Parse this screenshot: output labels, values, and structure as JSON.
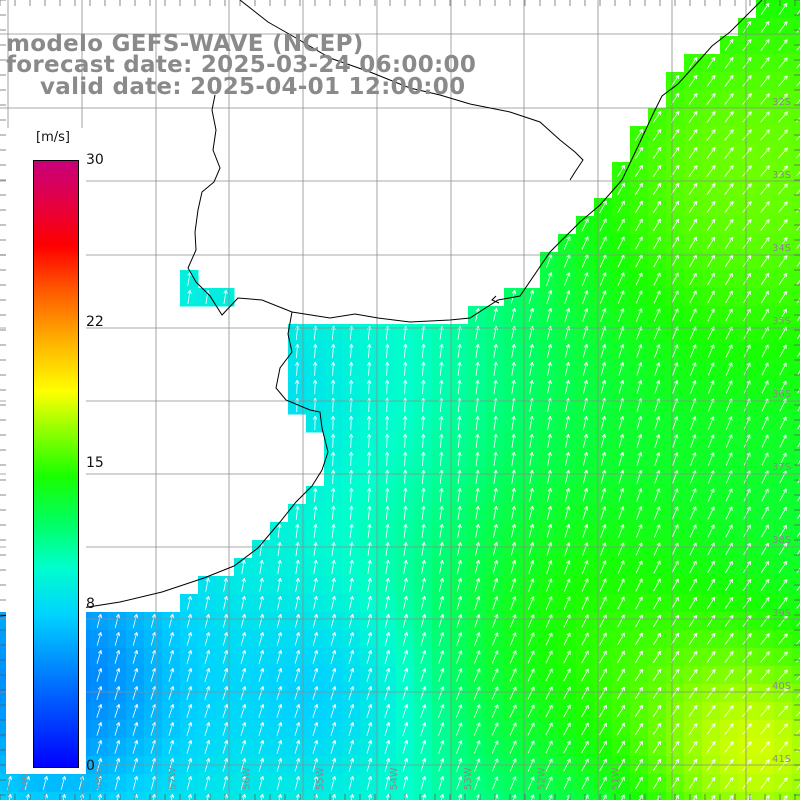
{
  "title": {
    "model": "modelo GEFS-WAVE (NCEP)",
    "forecast": "forecast date: 2025-03-24 06:00:00",
    "valid": "valid date: 2025-04-01 12:00:00"
  },
  "colorbar": {
    "unit": "[m/s]",
    "ticks": [
      {
        "value": 30,
        "label": "30"
      },
      {
        "value": 22,
        "label": "22"
      },
      {
        "value": 15,
        "label": "15"
      },
      {
        "value": 8,
        "label": "8"
      },
      {
        "value": 0,
        "label": "0"
      }
    ],
    "min": 0,
    "max": 30
  },
  "map": {
    "extent": {
      "lon_min": -59.3,
      "lon_max": -50.4,
      "lat_min": -41.7,
      "lat_max": -30.9
    },
    "lon_ticks": [
      "59W",
      "58W",
      "57W",
      "56W",
      "55W",
      "54W",
      "53W",
      "52W",
      "51W"
    ],
    "lat_ticks": [
      "32S",
      "33S",
      "34S",
      "35S",
      "36S",
      "37S",
      "38S",
      "39S",
      "40S",
      "41S"
    ],
    "wind_direction": "from-south-southwest",
    "colors": {
      "land": "#ffffff",
      "coast": "#000000",
      "grid": "#999999",
      "arrow": "#ffffff"
    }
  }
}
